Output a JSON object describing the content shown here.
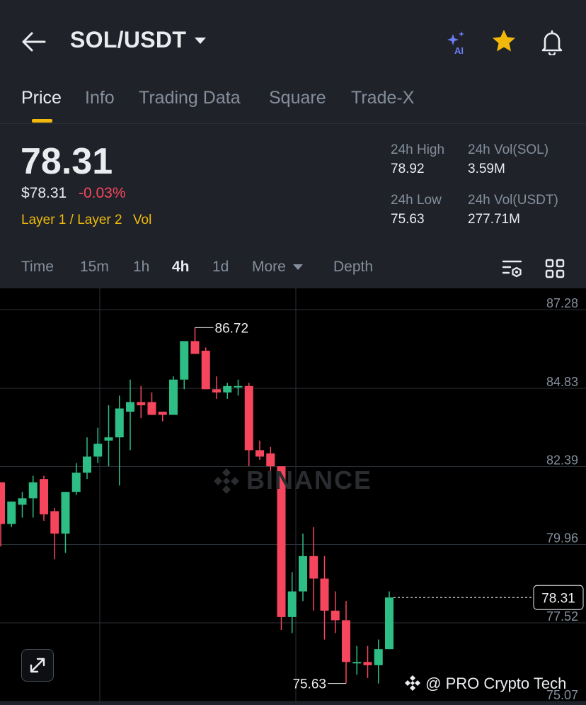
{
  "header": {
    "pair": "SOL/USDT",
    "icons": [
      "back-arrow-icon",
      "ai-sparkle-icon",
      "star-icon",
      "bell-icon"
    ],
    "ai_badge": "AI",
    "star_color": "#f0b90b"
  },
  "tabs": [
    "Price",
    "Info",
    "Trading Data",
    "Square",
    "Trade-X"
  ],
  "active_tab": "Price",
  "price": {
    "last": "78.31",
    "usd": "$78.31",
    "change": "-0.03%",
    "tags": [
      "Layer 1 / Layer 2",
      "Vol"
    ],
    "stats": [
      {
        "label": "24h High",
        "value": "78.92"
      },
      {
        "label": "24h Vol(SOL)",
        "value": "3.59M"
      },
      {
        "label": "24h Low",
        "value": "75.63"
      },
      {
        "label": "24h Vol(USDT)",
        "value": "277.71M"
      }
    ]
  },
  "intervals": [
    "Time",
    "15m",
    "1h",
    "4h",
    "1d",
    "More",
    "Depth"
  ],
  "active_interval": "4h",
  "colors": {
    "up": "#2ebd85",
    "down": "#f6465d",
    "accent": "#f0b90b",
    "background": "#1f2329",
    "chart_background": "#000000"
  },
  "chart_data": {
    "type": "candlestick",
    "interval": "4h",
    "y_ticks": [
      "87.28",
      "84.83",
      "82.39",
      "79.96",
      "77.52",
      "75.07"
    ],
    "ylim": [
      75.07,
      87.28
    ],
    "high_label": "86.72",
    "low_label": "75.63",
    "last_price_label": "78.31",
    "candles": [
      {
        "o": 81.9,
        "h": 81.9,
        "c": 80.6,
        "l": 79.9
      },
      {
        "o": 80.6,
        "h": 81.3,
        "c": 81.3,
        "l": 80.5
      },
      {
        "o": 81.2,
        "h": 81.6,
        "c": 81.4,
        "l": 80.8
      },
      {
        "o": 81.4,
        "h": 82.1,
        "c": 81.9,
        "l": 80.8
      },
      {
        "o": 82.0,
        "h": 82.1,
        "c": 80.9,
        "l": 80.7
      },
      {
        "o": 81.0,
        "h": 81.1,
        "c": 80.3,
        "l": 79.5
      },
      {
        "o": 80.3,
        "h": 81.6,
        "c": 81.6,
        "l": 79.7
      },
      {
        "o": 81.6,
        "h": 82.5,
        "c": 82.2,
        "l": 81.5
      },
      {
        "o": 82.2,
        "h": 83.3,
        "c": 82.7,
        "l": 82.0
      },
      {
        "o": 82.7,
        "h": 83.6,
        "c": 83.1,
        "l": 82.5
      },
      {
        "o": 83.2,
        "h": 84.3,
        "c": 83.3,
        "l": 82.4
      },
      {
        "o": 83.3,
        "h": 84.6,
        "c": 84.2,
        "l": 81.8
      },
      {
        "o": 84.1,
        "h": 85.1,
        "c": 84.4,
        "l": 82.9
      },
      {
        "o": 84.4,
        "h": 84.9,
        "c": 84.3,
        "l": 83.9
      },
      {
        "o": 84.4,
        "h": 84.7,
        "c": 84.0,
        "l": 84.0
      },
      {
        "o": 84.1,
        "h": 84.1,
        "c": 84.0,
        "l": 83.8
      },
      {
        "o": 84.0,
        "h": 85.2,
        "c": 85.1,
        "l": 84.0
      },
      {
        "o": 85.1,
        "h": 86.3,
        "c": 86.3,
        "l": 84.8
      },
      {
        "o": 86.3,
        "h": 86.72,
        "c": 85.9,
        "l": 85.9
      },
      {
        "o": 86.0,
        "h": 86.1,
        "c": 84.8,
        "l": 84.8
      },
      {
        "o": 84.8,
        "h": 85.2,
        "c": 84.7,
        "l": 84.5
      },
      {
        "o": 84.7,
        "h": 85.0,
        "c": 84.9,
        "l": 84.5
      },
      {
        "o": 84.9,
        "h": 85.1,
        "c": 84.9,
        "l": 84.6
      },
      {
        "o": 84.9,
        "h": 85.0,
        "c": 82.9,
        "l": 82.4
      },
      {
        "o": 82.9,
        "h": 83.2,
        "c": 82.7,
        "l": 82.6
      },
      {
        "o": 82.8,
        "h": 83.0,
        "c": 82.4,
        "l": 82.0
      },
      {
        "o": 82.4,
        "h": 82.4,
        "c": 77.7,
        "l": 77.3
      },
      {
        "o": 77.7,
        "h": 79.1,
        "c": 78.5,
        "l": 77.2
      },
      {
        "o": 78.5,
        "h": 80.3,
        "c": 79.6,
        "l": 78.2
      },
      {
        "o": 79.6,
        "h": 80.5,
        "c": 78.9,
        "l": 77.9
      },
      {
        "o": 78.9,
        "h": 79.6,
        "c": 77.9,
        "l": 77.0
      },
      {
        "o": 77.9,
        "h": 78.5,
        "c": 77.6,
        "l": 77.2
      },
      {
        "o": 77.6,
        "h": 78.2,
        "c": 76.3,
        "l": 75.63
      },
      {
        "o": 76.3,
        "h": 76.8,
        "c": 76.3,
        "l": 75.9
      },
      {
        "o": 76.3,
        "h": 76.8,
        "c": 76.2,
        "l": 75.8
      },
      {
        "o": 76.2,
        "h": 77.0,
        "c": 76.7,
        "l": 75.63
      },
      {
        "o": 76.7,
        "h": 78.5,
        "c": 78.31,
        "l": 76.7
      }
    ]
  },
  "watermark": "BINANCE",
  "credit": "@ PRO Crypto Tech"
}
